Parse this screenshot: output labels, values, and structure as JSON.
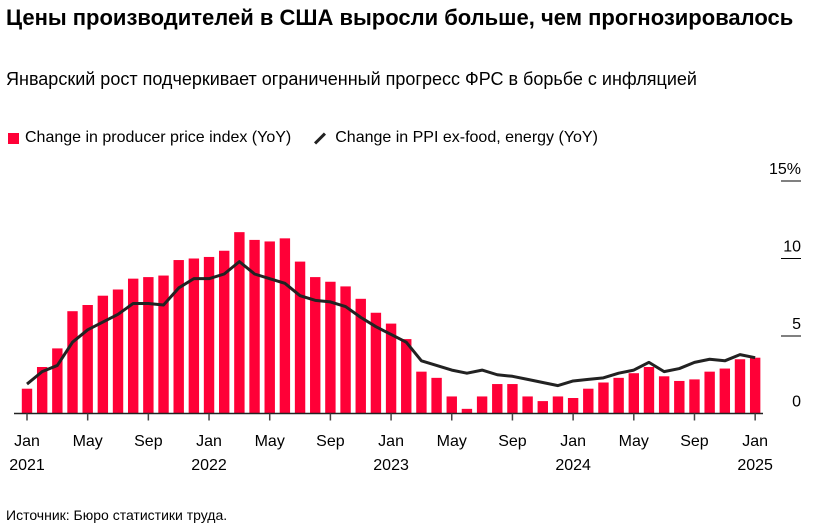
{
  "title": "Цены производителей в США выросли больше, чем прогнозировалось",
  "subtitle": "Январский рост подчеркивает ограниченный прогресс ФРС в борьбе с инфляцией",
  "source": "Источник: Бюро статистики труда.",
  "colors": {
    "bars": "#ff0037",
    "line": "#222222"
  },
  "chart_data": {
    "type": "bar+line",
    "x_start": "2021-01",
    "x_end": "2025-01",
    "frequency": "monthly",
    "ylim": [
      0,
      15
    ],
    "yticks": [
      {
        "v": 0,
        "label": "0"
      },
      {
        "v": 5,
        "label": "5"
      },
      {
        "v": 10,
        "label": "10"
      },
      {
        "v": 15,
        "label": "15%"
      }
    ],
    "y_axis_side": "right",
    "xticks": [
      {
        "i": 0,
        "m": "Jan",
        "y": "2021"
      },
      {
        "i": 4,
        "m": "May",
        "y": ""
      },
      {
        "i": 8,
        "m": "Sep",
        "y": ""
      },
      {
        "i": 12,
        "m": "Jan",
        "y": "2022"
      },
      {
        "i": 16,
        "m": "May",
        "y": ""
      },
      {
        "i": 20,
        "m": "Sep",
        "y": ""
      },
      {
        "i": 24,
        "m": "Jan",
        "y": "2023"
      },
      {
        "i": 28,
        "m": "May",
        "y": ""
      },
      {
        "i": 32,
        "m": "Sep",
        "y": ""
      },
      {
        "i": 36,
        "m": "Jan",
        "y": "2024"
      },
      {
        "i": 40,
        "m": "May",
        "y": ""
      },
      {
        "i": 44,
        "m": "Sep",
        "y": ""
      },
      {
        "i": 48,
        "m": "Jan",
        "y": "2025"
      }
    ],
    "legend_position": "top-left",
    "series": [
      {
        "name": "Change in producer price index (YoY)",
        "kind": "bar",
        "values": [
          1.6,
          3.0,
          4.2,
          6.6,
          7.0,
          7.6,
          8.0,
          8.7,
          8.8,
          8.9,
          9.9,
          10.0,
          10.1,
          10.5,
          11.7,
          11.2,
          11.1,
          11.3,
          9.8,
          8.8,
          8.5,
          8.2,
          7.4,
          6.5,
          5.8,
          4.8,
          2.7,
          2.3,
          1.1,
          0.3,
          1.1,
          1.9,
          1.9,
          1.1,
          0.8,
          1.1,
          1.0,
          1.6,
          2.0,
          2.3,
          2.6,
          3.0,
          2.4,
          2.1,
          2.2,
          2.7,
          2.9,
          3.5,
          3.6
        ]
      },
      {
        "name": "Change in PPI ex-food, energy (YoY)",
        "kind": "line",
        "values": [
          1.9,
          2.7,
          3.1,
          4.6,
          5.4,
          5.9,
          6.4,
          7.1,
          7.1,
          7.0,
          8.1,
          8.7,
          8.7,
          9.0,
          9.8,
          9.0,
          8.7,
          8.4,
          7.6,
          7.3,
          7.2,
          6.9,
          6.2,
          5.6,
          5.1,
          4.6,
          3.4,
          3.1,
          2.8,
          2.6,
          2.8,
          2.5,
          2.4,
          2.2,
          2.0,
          1.8,
          2.1,
          2.2,
          2.3,
          2.6,
          2.8,
          3.3,
          2.7,
          2.9,
          3.3,
          3.5,
          3.4,
          3.8,
          3.6
        ]
      }
    ]
  }
}
